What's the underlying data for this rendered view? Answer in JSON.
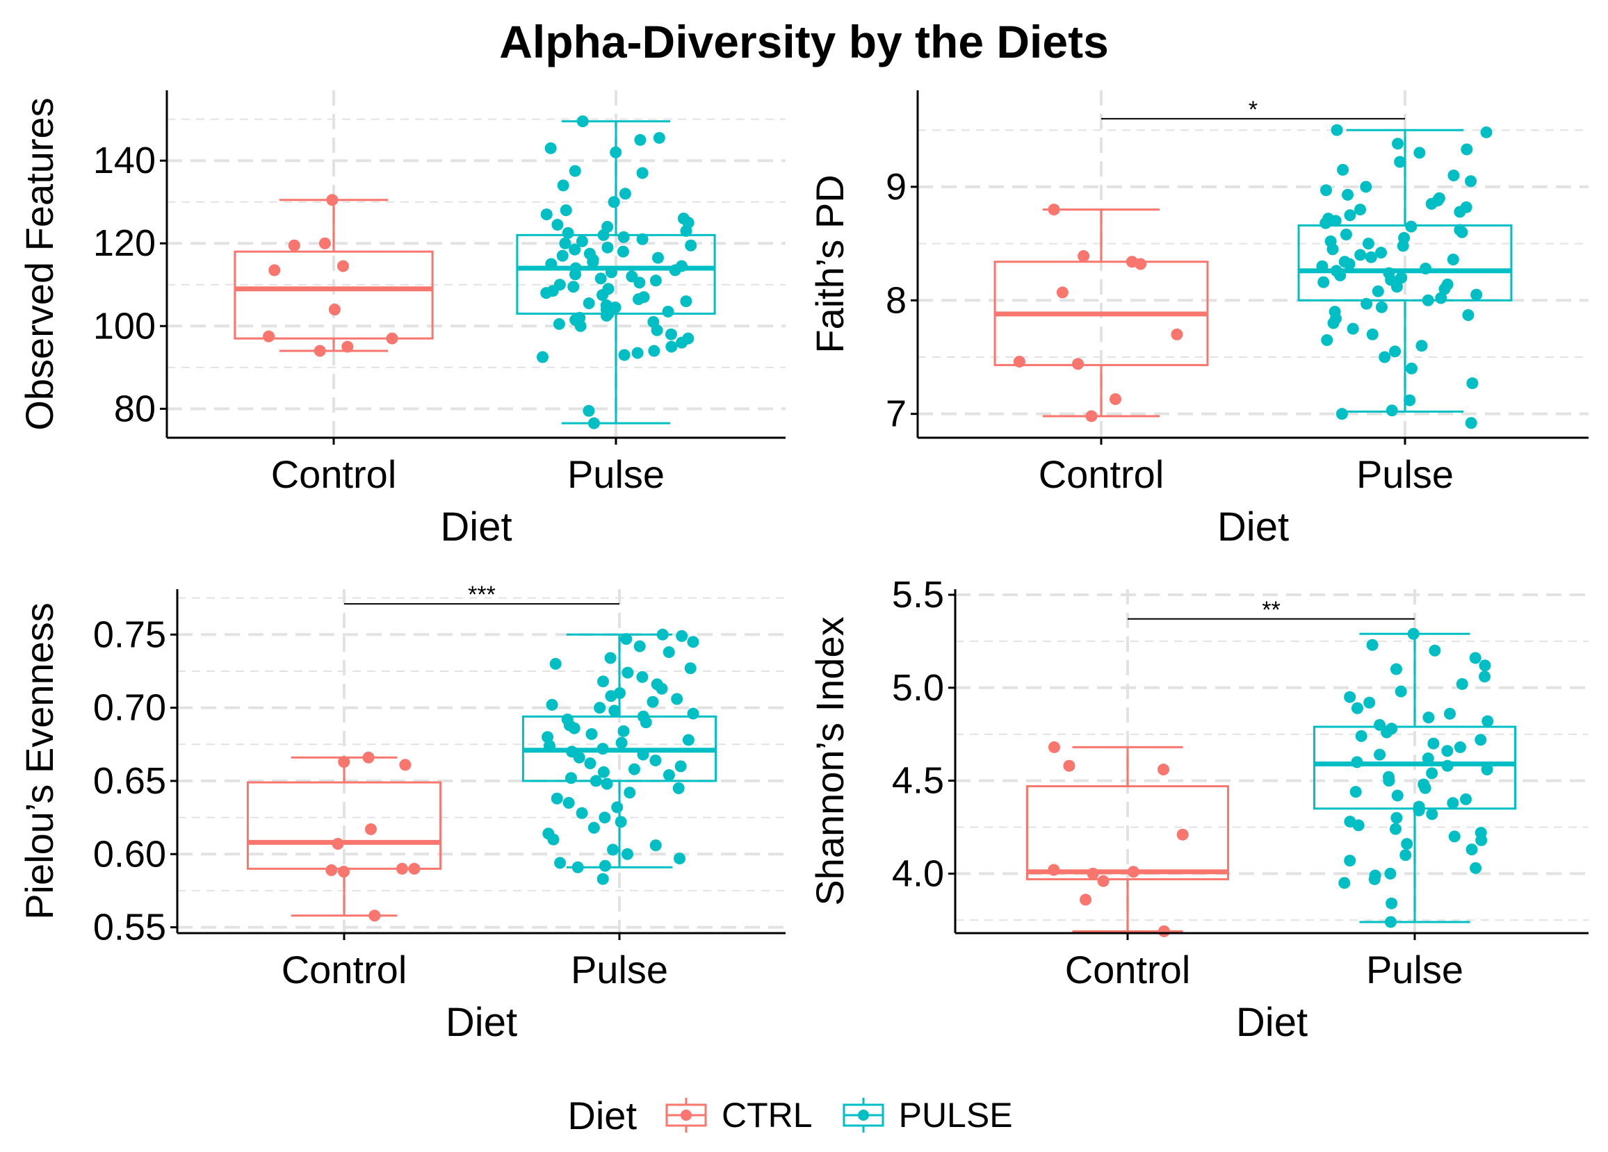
{
  "figure": {
    "title": "Alpha-Diversity by the Diets"
  },
  "legend": {
    "title": "Diet",
    "items": [
      {
        "label": "CTRL",
        "color": "#F8766D"
      },
      {
        "label": "PULSE",
        "color": "#00BFC4"
      }
    ]
  },
  "colors": {
    "control": "#F8766D",
    "pulse": "#00BFC4",
    "grid": "#e2e2e2"
  },
  "chart_data": [
    {
      "type": "boxplot",
      "name": "observed",
      "ylabel": "Observed Features",
      "xlabel": "Diet",
      "categories": [
        "Control",
        "Pulse"
      ],
      "ylim": [
        73,
        157
      ],
      "yticks": [
        80,
        100,
        120,
        140
      ],
      "ytick_labels": [
        "80",
        "100",
        "120",
        "140"
      ],
      "significance": "",
      "boxes": [
        {
          "category": "Control",
          "min": 94,
          "q1": 97,
          "median": 109,
          "q3": 118,
          "max": 130.5,
          "points": [
            130.5,
            114.5,
            113.5,
            119.5,
            120,
            104,
            97.5,
            97,
            95,
            94
          ]
        },
        {
          "category": "Pulse",
          "min": 76.5,
          "q1": 103,
          "median": 114,
          "q3": 122,
          "max": 149.5,
          "points": [
            149.5,
            145.5,
            145,
            143,
            142,
            137.5,
            137,
            134,
            132,
            130,
            128,
            127,
            126,
            125,
            124.5,
            124,
            123,
            122.5,
            122,
            121.5,
            121,
            120.5,
            120,
            119.5,
            119,
            118.5,
            118,
            117.5,
            117,
            116.5,
            116,
            115.5,
            115,
            114.5,
            114,
            113.5,
            113,
            112.5,
            112,
            111.5,
            111,
            110.5,
            110,
            109.5,
            109,
            108.5,
            108,
            107.5,
            107,
            106.5,
            106,
            105.5,
            105,
            104.5,
            104,
            103.5,
            103,
            102.5,
            102,
            101.5,
            101,
            100.5,
            100,
            99,
            98,
            97,
            96,
            95,
            94,
            93.5,
            93,
            92.5,
            79.5,
            76.5
          ]
        }
      ]
    },
    {
      "type": "boxplot",
      "name": "faith",
      "ylabel": "Faith’s PD",
      "xlabel": "Diet",
      "categories": [
        "Control",
        "Pulse"
      ],
      "ylim": [
        6.79,
        9.85
      ],
      "yticks": [
        7,
        8,
        9
      ],
      "ytick_labels": [
        "7",
        "8",
        "9"
      ],
      "significance": "*",
      "sig_y": 9.6,
      "boxes": [
        {
          "category": "Control",
          "min": 6.98,
          "q1": 7.43,
          "median": 7.88,
          "q3": 8.34,
          "max": 8.8,
          "points": [
            8.8,
            8.39,
            8.34,
            8.32,
            8.07,
            7.7,
            7.46,
            7.44,
            7.13,
            6.98
          ]
        },
        {
          "category": "Pulse",
          "min": 7.02,
          "q1": 8.0,
          "median": 8.26,
          "q3": 8.66,
          "max": 9.5,
          "points": [
            9.5,
            9.48,
            9.38,
            9.33,
            9.3,
            9.22,
            9.15,
            9.1,
            9.05,
            9.0,
            8.97,
            8.93,
            8.9,
            8.88,
            8.85,
            8.82,
            8.8,
            8.78,
            8.75,
            8.72,
            8.7,
            8.68,
            8.65,
            8.62,
            8.6,
            8.58,
            8.55,
            8.52,
            8.5,
            8.48,
            8.45,
            8.42,
            8.4,
            8.38,
            8.36,
            8.34,
            8.32,
            8.3,
            8.28,
            8.26,
            8.24,
            8.22,
            8.2,
            8.18,
            8.16,
            8.14,
            8.12,
            8.1,
            8.08,
            8.05,
            8.02,
            8.0,
            7.97,
            7.94,
            7.9,
            7.87,
            7.84,
            7.8,
            7.75,
            7.7,
            7.65,
            7.6,
            7.55,
            7.5,
            7.4,
            7.27,
            7.12,
            7.03,
            7.0,
            6.92
          ]
        }
      ]
    },
    {
      "type": "boxplot",
      "name": "pielou",
      "ylabel": "Pielou’s Evenness",
      "xlabel": "Diet",
      "categories": [
        "Control",
        "Pulse"
      ],
      "ylim": [
        0.546,
        0.781
      ],
      "yticks": [
        0.55,
        0.6,
        0.65,
        0.7,
        0.75
      ],
      "ytick_labels": [
        "0.55",
        "0.60",
        "0.65",
        "0.70",
        "0.75"
      ],
      "significance": "***",
      "sig_y": 0.771,
      "boxes": [
        {
          "category": "Control",
          "min": 0.558,
          "q1": 0.59,
          "median": 0.608,
          "q3": 0.649,
          "max": 0.666,
          "points": [
            0.666,
            0.663,
            0.661,
            0.617,
            0.607,
            0.59,
            0.59,
            0.589,
            0.588,
            0.558
          ]
        },
        {
          "category": "Pulse",
          "min": 0.591,
          "q1": 0.65,
          "median": 0.671,
          "q3": 0.694,
          "max": 0.75,
          "points": [
            0.75,
            0.749,
            0.747,
            0.745,
            0.742,
            0.738,
            0.734,
            0.73,
            0.727,
            0.724,
            0.721,
            0.718,
            0.716,
            0.713,
            0.71,
            0.708,
            0.706,
            0.704,
            0.702,
            0.7,
            0.698,
            0.696,
            0.694,
            0.692,
            0.69,
            0.688,
            0.686,
            0.684,
            0.682,
            0.68,
            0.678,
            0.676,
            0.674,
            0.672,
            0.67,
            0.668,
            0.666,
            0.664,
            0.662,
            0.66,
            0.658,
            0.656,
            0.654,
            0.652,
            0.65,
            0.648,
            0.645,
            0.642,
            0.638,
            0.635,
            0.632,
            0.628,
            0.625,
            0.622,
            0.618,
            0.614,
            0.61,
            0.606,
            0.603,
            0.6,
            0.597,
            0.594,
            0.592,
            0.591,
            0.583
          ]
        }
      ]
    },
    {
      "type": "boxplot",
      "name": "shannon",
      "ylabel": "Shannon’s Index",
      "xlabel": "Diet",
      "categories": [
        "Control",
        "Pulse"
      ],
      "ylim": [
        3.68,
        5.53
      ],
      "yticks": [
        4.0,
        4.5,
        5.0,
        5.5
      ],
      "ytick_labels": [
        "4.0",
        "4.5",
        "5.0",
        "5.5"
      ],
      "significance": "**",
      "sig_y": 5.37,
      "boxes": [
        {
          "category": "Control",
          "min": 3.69,
          "q1": 3.97,
          "median": 4.01,
          "q3": 4.47,
          "max": 4.68,
          "points": [
            4.68,
            4.58,
            4.56,
            4.21,
            4.02,
            4.01,
            4.0,
            3.96,
            3.86,
            3.69
          ]
        },
        {
          "category": "Pulse",
          "min": 3.74,
          "q1": 4.35,
          "median": 4.59,
          "q3": 4.79,
          "max": 5.29,
          "points": [
            5.29,
            5.23,
            5.2,
            5.16,
            5.12,
            5.1,
            5.06,
            5.02,
            4.98,
            4.95,
            4.92,
            4.89,
            4.86,
            4.84,
            4.82,
            4.8,
            4.78,
            4.76,
            4.74,
            4.72,
            4.7,
            4.68,
            4.66,
            4.64,
            4.62,
            4.6,
            4.58,
            4.56,
            4.54,
            4.52,
            4.5,
            4.48,
            4.46,
            4.44,
            4.42,
            4.4,
            4.38,
            4.36,
            4.34,
            4.32,
            4.3,
            4.28,
            4.26,
            4.24,
            4.22,
            4.2,
            4.18,
            4.16,
            4.13,
            4.1,
            4.07,
            4.03,
            4.0,
            3.99,
            3.97,
            3.95,
            3.84,
            3.74
          ]
        }
      ]
    }
  ]
}
